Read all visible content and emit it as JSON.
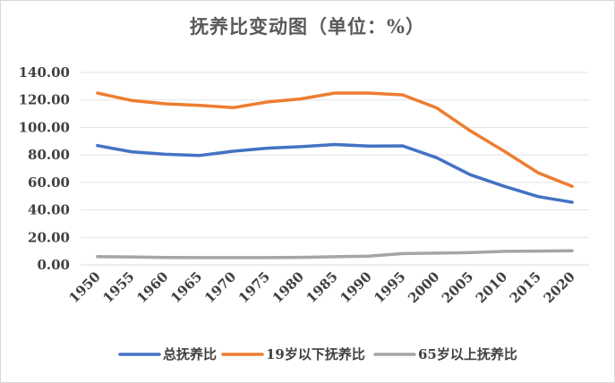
{
  "chart_data": {
    "type": "line",
    "title": "抚养比变动图（单位：%）",
    "xlabel": "",
    "ylabel": "",
    "ylim": [
      0,
      140
    ],
    "yticks": [
      "0.00",
      "20.00",
      "40.00",
      "60.00",
      "80.00",
      "100.00",
      "120.00",
      "140.00"
    ],
    "categories": [
      "1950",
      "1955",
      "1960",
      "1965",
      "1970",
      "1975",
      "1980",
      "1985",
      "1990",
      "1995",
      "2000",
      "2005",
      "2010",
      "2015",
      "2020"
    ],
    "grid": true,
    "legend_position": "bottom",
    "series": [
      {
        "name": "总抚养比",
        "color": "#4472c4",
        "values": [
          86.8,
          82.3,
          80.5,
          79.6,
          82.7,
          84.9,
          86.0,
          87.6,
          86.5,
          86.6,
          78.0,
          65.6,
          57.2,
          49.7,
          45.6
        ]
      },
      {
        "name": "19岁以下抚养比",
        "color": "#ed7d31",
        "values": [
          125.0,
          119.7,
          117.2,
          116.1,
          114.4,
          118.5,
          120.8,
          125.0,
          125.0,
          123.7,
          114.3,
          97.5,
          82.7,
          67.0,
          57.2
        ]
      },
      {
        "name": "65岁以上抚养比",
        "color": "#a5a5a5",
        "values": [
          6.0,
          5.8,
          5.4,
          5.3,
          5.3,
          5.3,
          5.5,
          5.9,
          6.3,
          8.2,
          8.5,
          8.9,
          9.8,
          10.0,
          10.3
        ]
      }
    ]
  }
}
